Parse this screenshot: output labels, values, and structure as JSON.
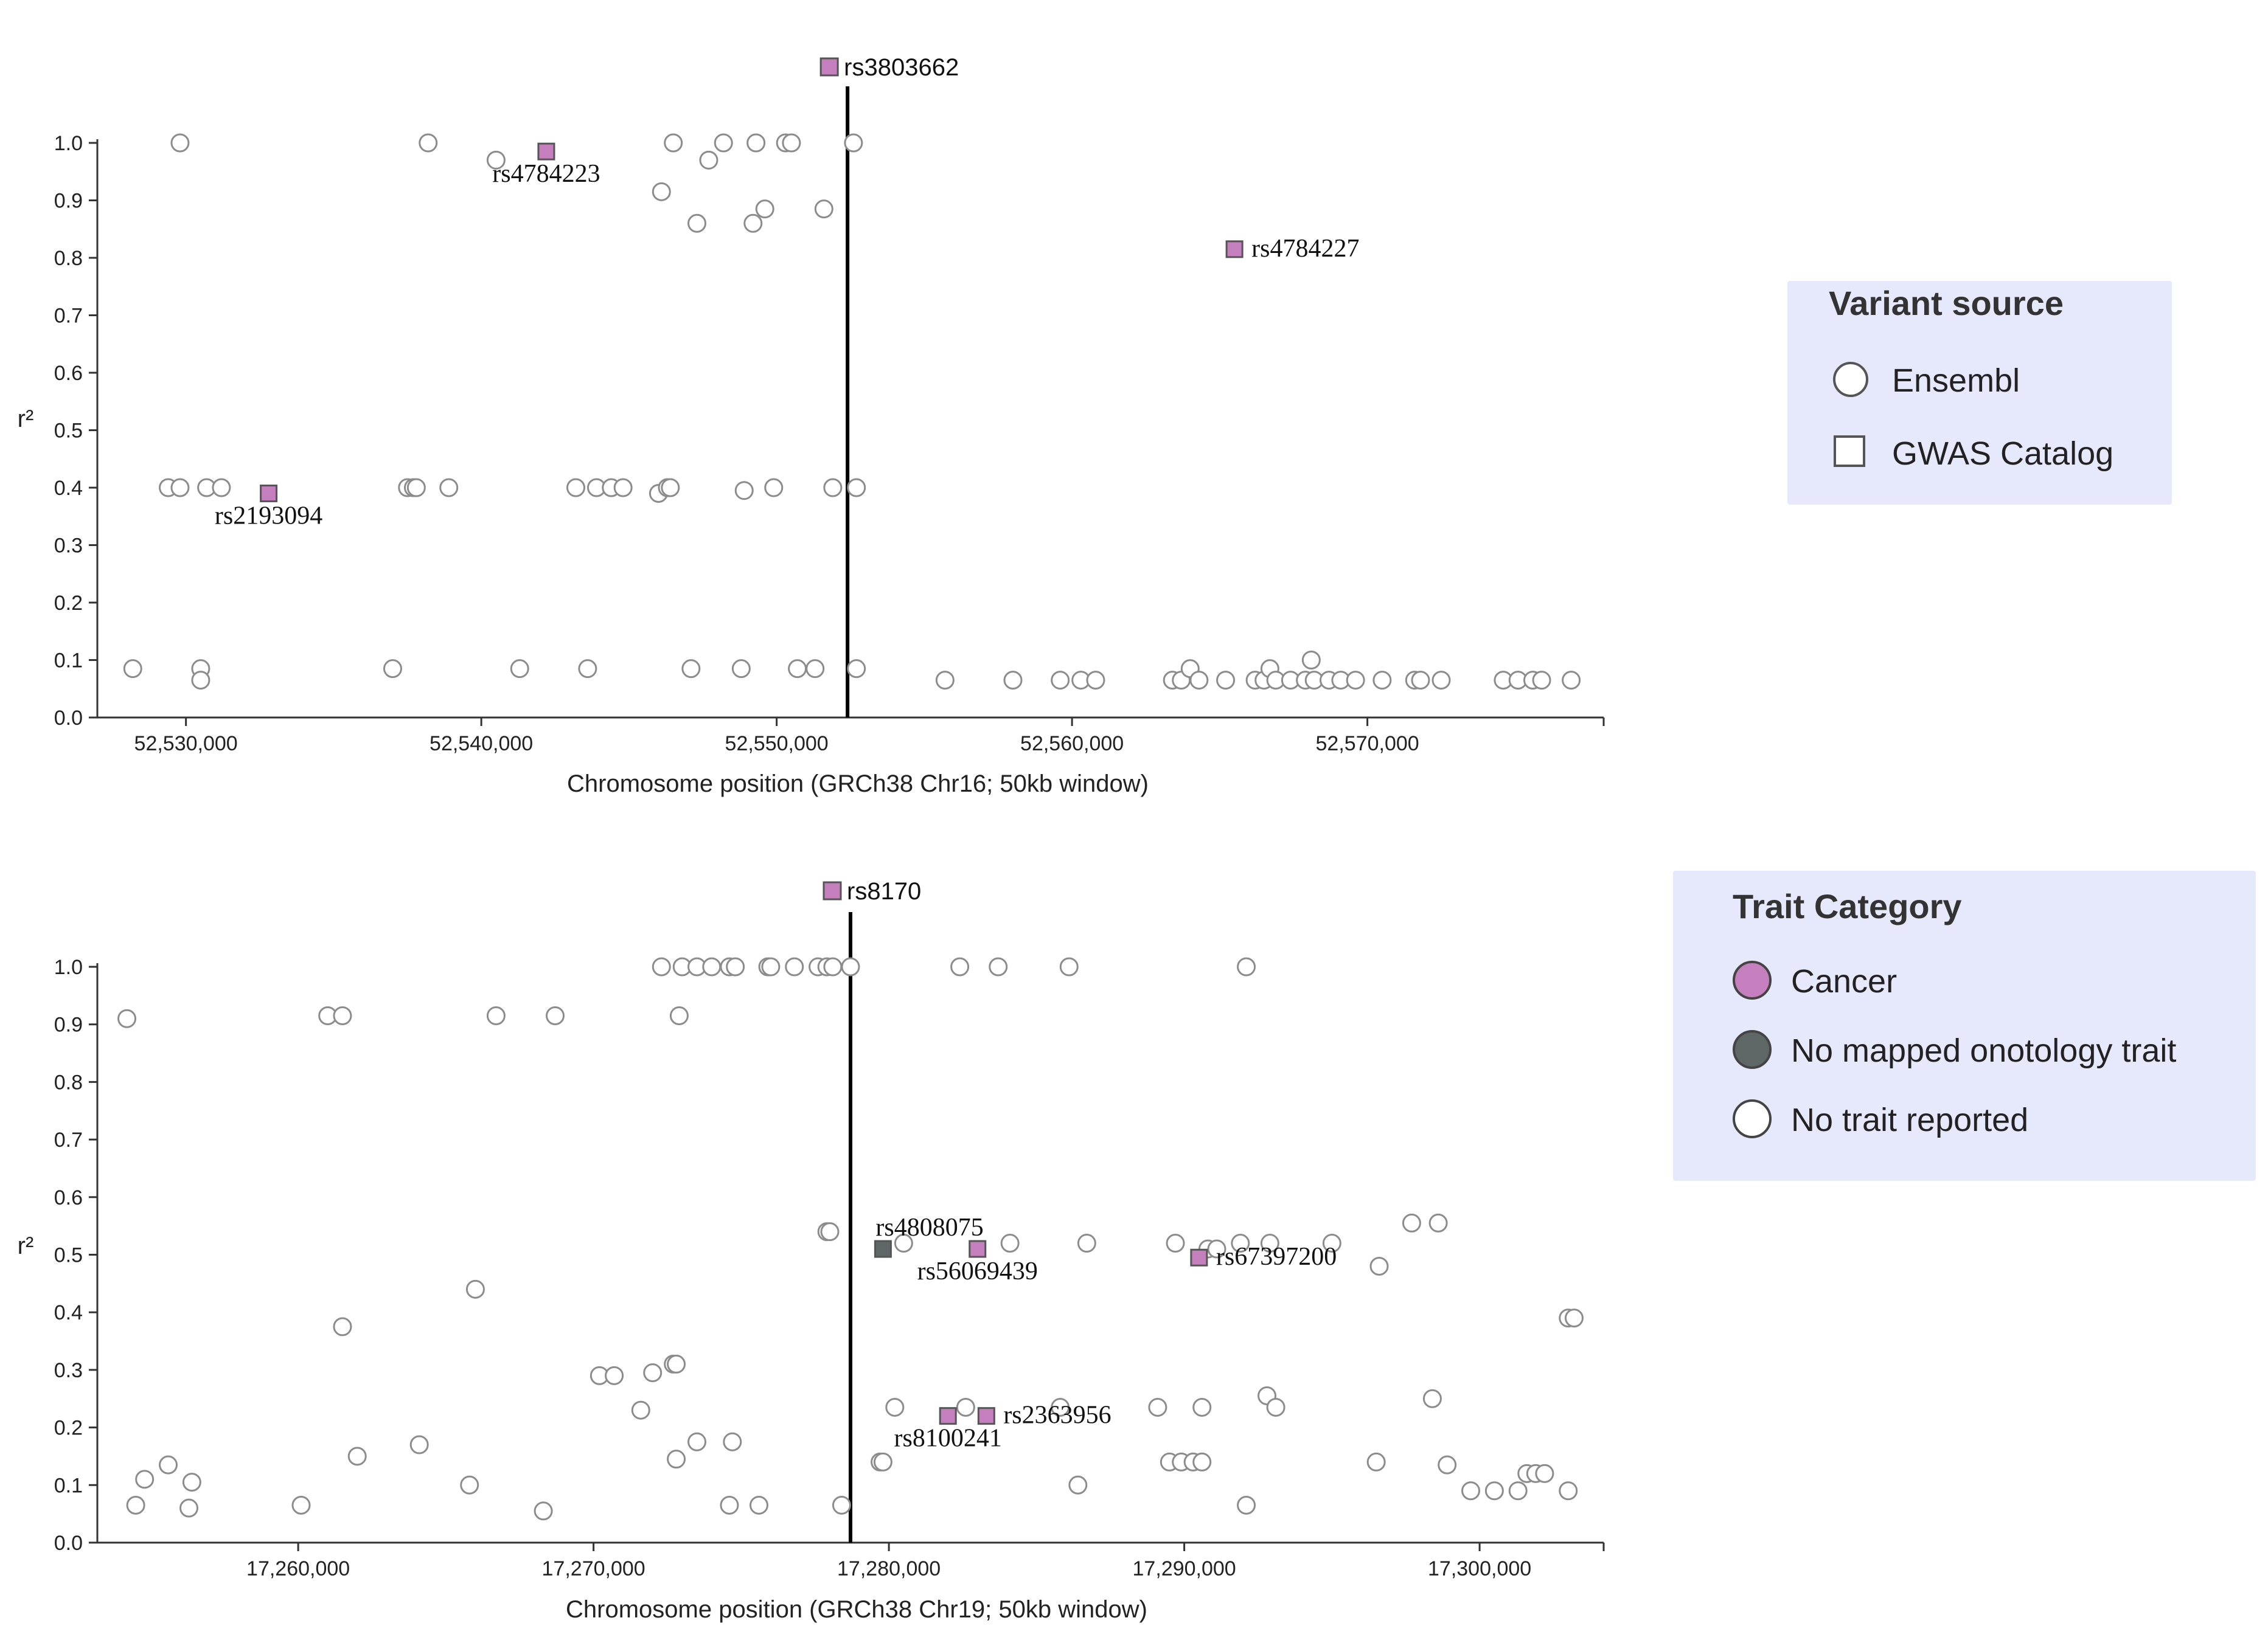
{
  "chart_data": [
    {
      "type": "scatter",
      "xlabel": "Chromosome position (GRCh38 Chr16; 50kb window)",
      "ylabel": "r²",
      "xlim": [
        52527000,
        52578000
      ],
      "ylim": [
        0,
        1.0
      ],
      "x_ticks": [
        52530000,
        52540000,
        52550000,
        52560000,
        52570000
      ],
      "x_tick_labels": [
        "52,530,000",
        "52,540,000",
        "52,550,000",
        "52,560,000",
        "52,570,000"
      ],
      "y_ticks": [
        0.0,
        0.1,
        0.2,
        0.3,
        0.4,
        0.5,
        0.6,
        0.7,
        0.8,
        0.9,
        1.0
      ],
      "y_tick_labels": [
        "0.0",
        "0.1",
        "0.2",
        "0.3",
        "0.4",
        "0.5",
        "0.6",
        "0.7",
        "0.8",
        "0.9",
        "1.0"
      ],
      "lead": {
        "label": "rs3803662",
        "x": 52552400,
        "color": "#c57fbf"
      },
      "labeled_variants": [
        {
          "label": "rs4784223",
          "x": 52542200,
          "y": 0.985,
          "color": "#c57fbf",
          "label_side": "below"
        },
        {
          "label": "rs4784227",
          "x": 52565500,
          "y": 0.815,
          "color": "#c57fbf",
          "label_side": "right"
        },
        {
          "label": "rs2193094",
          "x": 52532800,
          "y": 0.39,
          "color": "#c57fbf",
          "label_side": "below"
        }
      ],
      "ensembl_points": [
        [
          52529800,
          1.0
        ],
        [
          52538200,
          1.0
        ],
        [
          52540500,
          0.97
        ],
        [
          52546500,
          1.0
        ],
        [
          52547700,
          0.97
        ],
        [
          52548200,
          1.0
        ],
        [
          52549300,
          1.0
        ],
        [
          52550300,
          1.0
        ],
        [
          52550500,
          1.0
        ],
        [
          52552600,
          1.0
        ],
        [
          52546100,
          0.915
        ],
        [
          52549600,
          0.885
        ],
        [
          52551600,
          0.885
        ],
        [
          52547300,
          0.86
        ],
        [
          52549200,
          0.86
        ],
        [
          52529400,
          0.4
        ],
        [
          52529800,
          0.4
        ],
        [
          52530700,
          0.4
        ],
        [
          52531200,
          0.4
        ],
        [
          52537500,
          0.4
        ],
        [
          52537700,
          0.4
        ],
        [
          52537800,
          0.4
        ],
        [
          52538900,
          0.4
        ],
        [
          52543200,
          0.4
        ],
        [
          52543900,
          0.4
        ],
        [
          52544400,
          0.4
        ],
        [
          52544800,
          0.4
        ],
        [
          52546000,
          0.39
        ],
        [
          52546300,
          0.4
        ],
        [
          52546400,
          0.4
        ],
        [
          52548900,
          0.395
        ],
        [
          52549900,
          0.4
        ],
        [
          52551900,
          0.4
        ],
        [
          52552700,
          0.4
        ],
        [
          52528200,
          0.085
        ],
        [
          52530500,
          0.085
        ],
        [
          52530500,
          0.065
        ],
        [
          52537000,
          0.085
        ],
        [
          52541300,
          0.085
        ],
        [
          52543600,
          0.085
        ],
        [
          52547100,
          0.085
        ],
        [
          52548800,
          0.085
        ],
        [
          52550700,
          0.085
        ],
        [
          52551300,
          0.085
        ],
        [
          52552700,
          0.085
        ],
        [
          52555700,
          0.065
        ],
        [
          52558000,
          0.065
        ],
        [
          52559600,
          0.065
        ],
        [
          52560300,
          0.065
        ],
        [
          52560800,
          0.065
        ],
        [
          52563400,
          0.065
        ],
        [
          52563700,
          0.065
        ],
        [
          52564000,
          0.085
        ],
        [
          52564300,
          0.065
        ],
        [
          52565200,
          0.065
        ],
        [
          52566200,
          0.065
        ],
        [
          52566500,
          0.065
        ],
        [
          52566700,
          0.085
        ],
        [
          52566900,
          0.065
        ],
        [
          52567400,
          0.065
        ],
        [
          52567900,
          0.065
        ],
        [
          52568200,
          0.065
        ],
        [
          52568100,
          0.1
        ],
        [
          52568700,
          0.065
        ],
        [
          52569100,
          0.065
        ],
        [
          52569600,
          0.065
        ],
        [
          52570500,
          0.065
        ],
        [
          52571600,
          0.065
        ],
        [
          52571800,
          0.065
        ],
        [
          52572500,
          0.065
        ],
        [
          52574600,
          0.065
        ],
        [
          52575100,
          0.065
        ],
        [
          52575600,
          0.065
        ],
        [
          52575900,
          0.065
        ],
        [
          52576900,
          0.065
        ]
      ]
    },
    {
      "type": "scatter",
      "xlabel": "Chromosome position (GRCh38 Chr19; 50kb window)",
      "ylabel": "r²",
      "xlim": [
        17253200,
        17304200
      ],
      "ylim": [
        0,
        1.0
      ],
      "x_ticks": [
        17260000,
        17270000,
        17280000,
        17290000,
        17300000
      ],
      "x_tick_labels": [
        "17,260,000",
        "17,270,000",
        "17,280,000",
        "17,290,000",
        "17,300,000"
      ],
      "y_ticks": [
        0.0,
        0.1,
        0.2,
        0.3,
        0.4,
        0.5,
        0.6,
        0.7,
        0.8,
        0.9,
        1.0
      ],
      "y_tick_labels": [
        "0.0",
        "0.1",
        "0.2",
        "0.3",
        "0.4",
        "0.5",
        "0.6",
        "0.7",
        "0.8",
        "0.9",
        "1.0"
      ],
      "lead": {
        "label": "rs8170",
        "x": 17278700,
        "color": "#c57fbf"
      },
      "labeled_variants": [
        {
          "label": "rs4808075",
          "x": 17279800,
          "y": 0.51,
          "color": "#5f6766",
          "label_side": "above"
        },
        {
          "label": "rs56069439",
          "x": 17283000,
          "y": 0.51,
          "color": "#c57fbf",
          "label_side": "below"
        },
        {
          "label": "rs67397200",
          "x": 17290500,
          "y": 0.495,
          "color": "#c57fbf",
          "label_side": "right"
        },
        {
          "label": "rs8100241",
          "x": 17282000,
          "y": 0.22,
          "color": "#c57fbf",
          "label_side": "below"
        },
        {
          "label": "rs2363956",
          "x": 17283300,
          "y": 0.22,
          "color": "#c57fbf",
          "label_side": "right"
        }
      ],
      "ensembl_points": [
        [
          17272300,
          1.0
        ],
        [
          17273000,
          1.0
        ],
        [
          17273500,
          1.0
        ],
        [
          17274000,
          1.0
        ],
        [
          17274600,
          1.0
        ],
        [
          17274800,
          1.0
        ],
        [
          17275900,
          1.0
        ],
        [
          17276000,
          1.0
        ],
        [
          17276800,
          1.0
        ],
        [
          17277600,
          1.0
        ],
        [
          17277900,
          1.0
        ],
        [
          17278100,
          1.0
        ],
        [
          17278700,
          1.0
        ],
        [
          17282400,
          1.0
        ],
        [
          17283700,
          1.0
        ],
        [
          17286100,
          1.0
        ],
        [
          17292100,
          1.0
        ],
        [
          17254200,
          0.91
        ],
        [
          17261000,
          0.915
        ],
        [
          17261500,
          0.915
        ],
        [
          17266700,
          0.915
        ],
        [
          17268700,
          0.915
        ],
        [
          17272900,
          0.915
        ],
        [
          17277900,
          0.54
        ],
        [
          17278000,
          0.54
        ],
        [
          17280500,
          0.52
        ],
        [
          17284100,
          0.52
        ],
        [
          17286700,
          0.52
        ],
        [
          17289700,
          0.52
        ],
        [
          17290800,
          0.51
        ],
        [
          17291100,
          0.51
        ],
        [
          17291900,
          0.52
        ],
        [
          17292900,
          0.52
        ],
        [
          17295000,
          0.52
        ],
        [
          17296600,
          0.48
        ],
        [
          17297700,
          0.555
        ],
        [
          17298600,
          0.555
        ],
        [
          17266000,
          0.44
        ],
        [
          17261500,
          0.375
        ],
        [
          17303000,
          0.39
        ],
        [
          17303200,
          0.39
        ],
        [
          17270200,
          0.29
        ],
        [
          17270700,
          0.29
        ],
        [
          17272000,
          0.295
        ],
        [
          17272700,
          0.31
        ],
        [
          17272800,
          0.31
        ],
        [
          17271600,
          0.23
        ],
        [
          17280200,
          0.235
        ],
        [
          17282600,
          0.235
        ],
        [
          17285800,
          0.235
        ],
        [
          17289100,
          0.235
        ],
        [
          17290600,
          0.235
        ],
        [
          17292800,
          0.255
        ],
        [
          17293100,
          0.235
        ],
        [
          17298400,
          0.25
        ],
        [
          17255600,
          0.135
        ],
        [
          17254800,
          0.11
        ],
        [
          17256400,
          0.105
        ],
        [
          17256300,
          0.06
        ],
        [
          17254500,
          0.065
        ],
        [
          17260100,
          0.065
        ],
        [
          17262000,
          0.15
        ],
        [
          17264100,
          0.17
        ],
        [
          17265800,
          0.1
        ],
        [
          17268300,
          0.055
        ],
        [
          17272800,
          0.145
        ],
        [
          17273500,
          0.175
        ],
        [
          17274700,
          0.175
        ],
        [
          17274600,
          0.065
        ],
        [
          17275600,
          0.065
        ],
        [
          17278400,
          0.065
        ],
        [
          17279700,
          0.14
        ],
        [
          17279800,
          0.14
        ],
        [
          17286400,
          0.1
        ],
        [
          17289500,
          0.14
        ],
        [
          17289900,
          0.14
        ],
        [
          17290300,
          0.14
        ],
        [
          17290600,
          0.14
        ],
        [
          17292100,
          0.065
        ],
        [
          17296500,
          0.14
        ],
        [
          17298900,
          0.135
        ],
        [
          17299700,
          0.09
        ],
        [
          17300500,
          0.09
        ],
        [
          17301300,
          0.09
        ],
        [
          17301600,
          0.12
        ],
        [
          17301900,
          0.12
        ],
        [
          17302200,
          0.12
        ],
        [
          17303000,
          0.09
        ]
      ]
    }
  ],
  "legends": {
    "variant_source": {
      "title": "Variant source",
      "items": [
        {
          "label": "Ensembl",
          "shape": "circle"
        },
        {
          "label": "GWAS Catalog",
          "shape": "square"
        }
      ]
    },
    "trait_category": {
      "title": "Trait Category",
      "items": [
        {
          "label": "Cancer",
          "color": "#c57fbf"
        },
        {
          "label": "No mapped onotology trait",
          "color": "#5f6766"
        },
        {
          "label": "No trait reported",
          "color": "#ffffff"
        }
      ]
    }
  },
  "colors": {
    "legend_bg": "#e6e8fb",
    "ensembl_stroke": "#8c8c8c",
    "axis": "#333333",
    "lead_line": "#000000"
  }
}
